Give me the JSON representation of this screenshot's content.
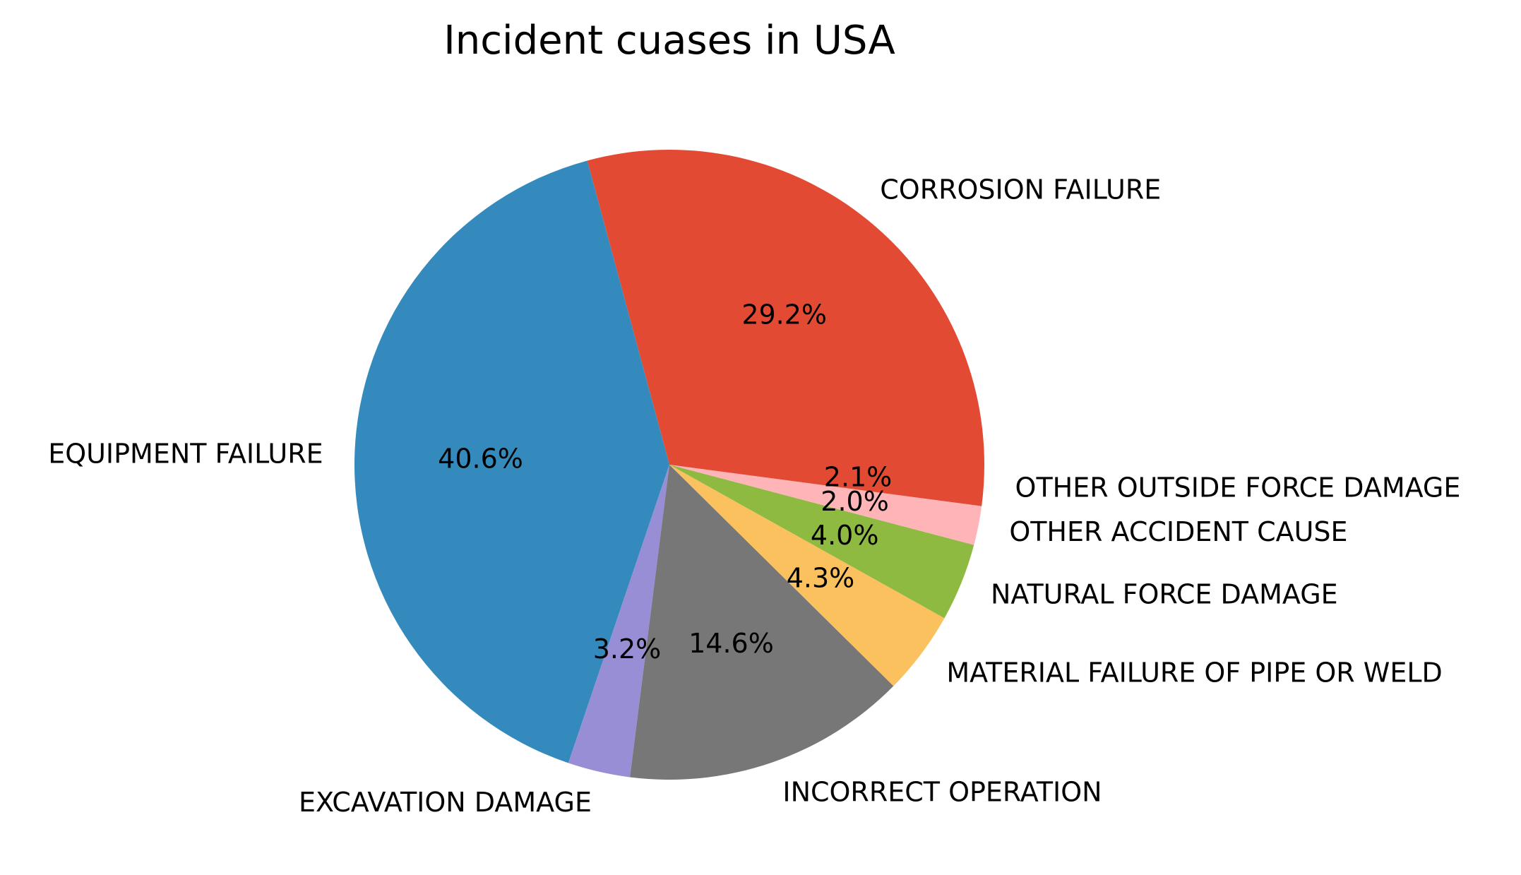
{
  "chart_data": {
    "type": "pie",
    "title": "Incident cuases in USA",
    "start_angle_deg": 0,
    "direction": "counterclockwise",
    "slices": [
      {
        "label": "CORROSION FAILURE",
        "value": 29.2,
        "pct_label": "29.2%",
        "color": "#E24A33"
      },
      {
        "label": "EQUIPMENT FAILURE",
        "value": 40.6,
        "pct_label": "40.6%",
        "color": "#348ABD"
      },
      {
        "label": "EXCAVATION DAMAGE",
        "value": 3.2,
        "pct_label": "3.2%",
        "color": "#988ED5"
      },
      {
        "label": "INCORRECT OPERATION",
        "value": 14.6,
        "pct_label": "14.6%",
        "color": "#777777"
      },
      {
        "label": "MATERIAL FAILURE OF PIPE OR WELD",
        "value": 4.3,
        "pct_label": "4.3%",
        "color": "#FBC15E"
      },
      {
        "label": "NATURAL FORCE DAMAGE",
        "value": 4.0,
        "pct_label": "4.0%",
        "color": "#8EBA42"
      },
      {
        "label": "OTHER ACCIDENT CAUSE",
        "value": 2.0,
        "pct_label": "2.0%",
        "color": "#FFB5B8"
      },
      {
        "label": "OTHER OUTSIDE FORCE DAMAGE",
        "value": 2.1,
        "pct_label": "2.1%",
        "color": "#E24A33"
      }
    ]
  }
}
